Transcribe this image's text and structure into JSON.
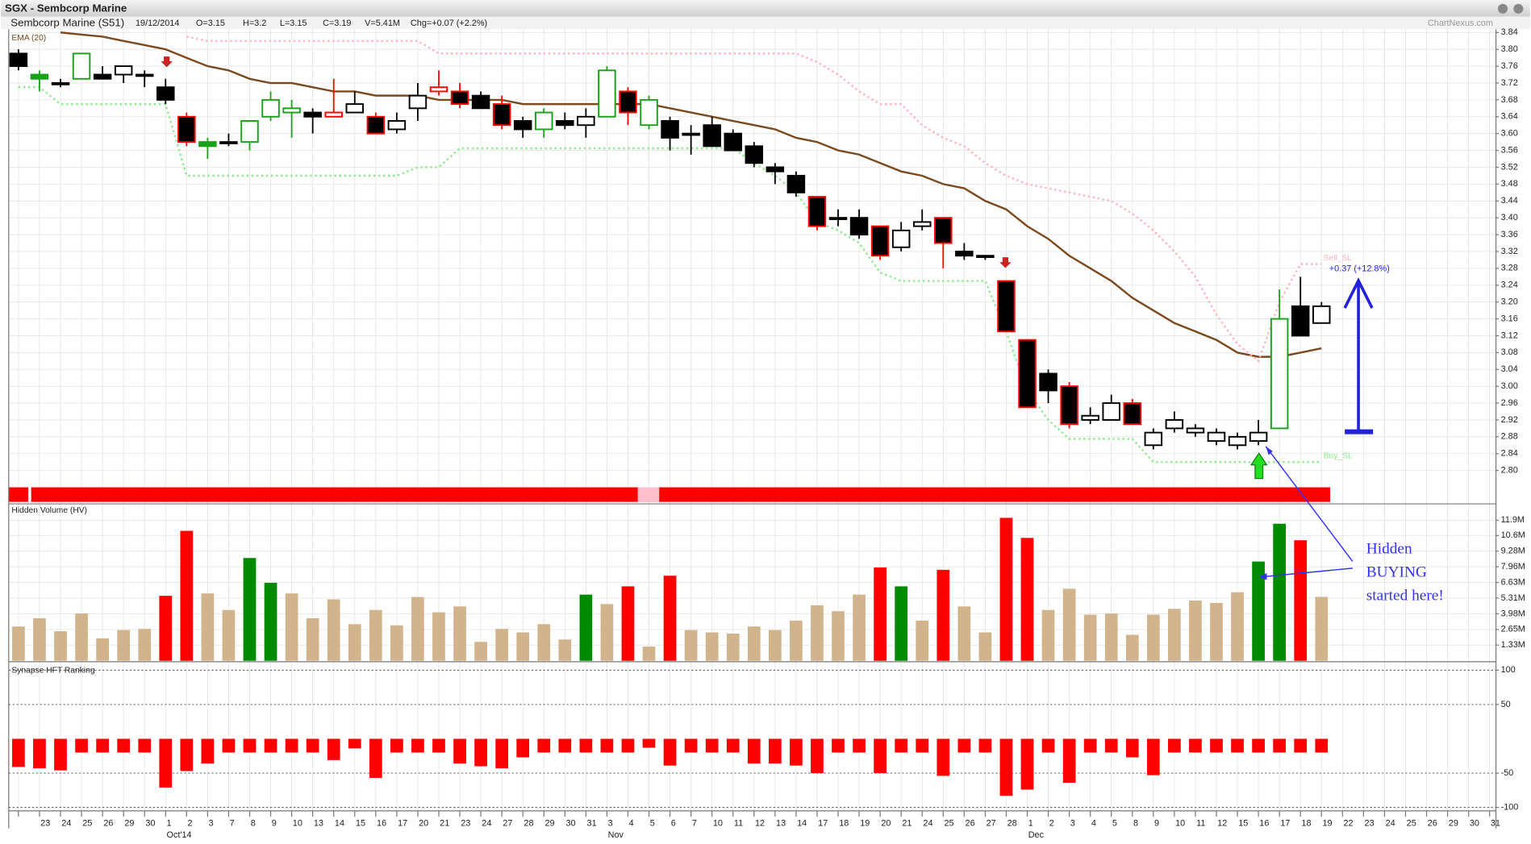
{
  "header": {
    "title": "SGX - Sembcorp Marine",
    "name": "Sembcorp Marine (S51)",
    "date": "19/12/2014",
    "open": "O=3.15",
    "high": "H=3.2",
    "low": "L=3.15",
    "close": "C=3.19",
    "volume": "V=5.41M",
    "change": "Chg=+0.07 (+2.2%)",
    "source": "ChartNexus.com"
  },
  "annotation": {
    "lines": [
      "Hidden",
      "BUYING",
      "started here!"
    ]
  },
  "chart_data": [
    {
      "type": "candlestick",
      "categories": [
        null,
        "23",
        "24",
        "25",
        "26",
        "29",
        "30",
        "1",
        "2",
        "3",
        "7",
        "8",
        "9",
        "10",
        "13",
        "14",
        "15",
        "16",
        "17",
        "20",
        "21",
        "23",
        "24",
        "27",
        "28",
        "29",
        "30",
        "31",
        "3",
        "4",
        "5",
        "6",
        "7",
        "10",
        "11",
        "12",
        "13",
        "14",
        "17",
        "18",
        "19",
        "20",
        "21",
        "24",
        "25",
        "26",
        "27",
        "28",
        "1",
        "2",
        "3",
        "4",
        "5",
        "8",
        "9",
        "10",
        "11",
        "12",
        "15",
        "16",
        "17",
        "18",
        "19",
        "22",
        "23",
        "24",
        "25",
        "26",
        "29",
        "30",
        "31"
      ],
      "months": [
        "Oct'14",
        "Nov",
        "Dec"
      ],
      "open": [
        3.79,
        3.74,
        3.72,
        3.73,
        3.74,
        3.74,
        3.74,
        3.71,
        3.64,
        3.58,
        3.58,
        3.58,
        3.64,
        3.65,
        3.65,
        3.64,
        3.65,
        3.64,
        3.61,
        3.66,
        3.7,
        3.7,
        3.69,
        3.67,
        3.63,
        3.61,
        3.63,
        3.62,
        3.64,
        3.7,
        3.62,
        3.63,
        3.6,
        3.62,
        3.6,
        3.57,
        3.52,
        3.5,
        3.45,
        3.4,
        3.4,
        3.38,
        3.33,
        3.38,
        3.4,
        3.32,
        3.31,
        3.25,
        3.11,
        3.03,
        3.0,
        2.92,
        2.92,
        2.96,
        2.86,
        2.9,
        2.89,
        2.87,
        2.86,
        2.87,
        2.9,
        3.19,
        3.15,
        null,
        null,
        null,
        null,
        null,
        null,
        null,
        null
      ],
      "high": [
        3.8,
        3.75,
        3.73,
        3.79,
        3.76,
        3.76,
        3.75,
        3.73,
        3.65,
        3.59,
        3.6,
        3.63,
        3.7,
        3.68,
        3.66,
        3.73,
        3.7,
        3.65,
        3.65,
        3.72,
        3.75,
        3.72,
        3.7,
        3.69,
        3.64,
        3.66,
        3.65,
        3.66,
        3.76,
        3.71,
        3.69,
        3.64,
        3.62,
        3.64,
        3.61,
        3.58,
        3.53,
        3.51,
        3.45,
        3.42,
        3.42,
        3.38,
        3.39,
        3.42,
        3.4,
        3.34,
        3.31,
        3.25,
        3.11,
        3.04,
        3.01,
        2.95,
        2.98,
        2.97,
        2.9,
        2.94,
        2.91,
        2.9,
        2.89,
        2.92,
        3.23,
        3.26,
        3.2,
        null,
        null,
        null,
        null,
        null,
        null,
        null,
        null
      ],
      "low": [
        3.75,
        3.7,
        3.71,
        3.73,
        3.73,
        3.72,
        3.71,
        3.67,
        3.57,
        3.54,
        3.57,
        3.56,
        3.63,
        3.59,
        3.6,
        3.64,
        3.65,
        3.6,
        3.6,
        3.63,
        3.69,
        3.66,
        3.66,
        3.61,
        3.59,
        3.59,
        3.61,
        3.59,
        3.64,
        3.62,
        3.61,
        3.56,
        3.55,
        3.57,
        3.56,
        3.52,
        3.48,
        3.45,
        3.37,
        3.38,
        3.35,
        3.3,
        3.32,
        3.37,
        3.28,
        3.3,
        3.3,
        3.13,
        2.95,
        2.96,
        2.9,
        2.91,
        2.92,
        2.91,
        2.85,
        2.89,
        2.88,
        2.86,
        2.85,
        2.86,
        2.9,
        3.12,
        3.15,
        null,
        null,
        null,
        null,
        null,
        null,
        null,
        null
      ],
      "close": [
        3.76,
        3.73,
        3.72,
        3.79,
        3.73,
        3.76,
        3.74,
        3.68,
        3.58,
        3.57,
        3.58,
        3.63,
        3.68,
        3.66,
        3.64,
        3.65,
        3.67,
        3.6,
        3.63,
        3.69,
        3.71,
        3.67,
        3.66,
        3.62,
        3.61,
        3.65,
        3.62,
        3.64,
        3.75,
        3.65,
        3.68,
        3.59,
        3.6,
        3.57,
        3.56,
        3.53,
        3.51,
        3.46,
        3.38,
        3.4,
        3.36,
        3.31,
        3.37,
        3.39,
        3.34,
        3.31,
        3.31,
        3.13,
        2.95,
        2.99,
        2.91,
        2.93,
        2.96,
        2.91,
        2.89,
        2.92,
        2.9,
        2.89,
        2.88,
        2.89,
        3.16,
        3.12,
        3.19,
        null,
        null,
        null,
        null,
        null,
        null,
        null,
        null
      ],
      "edge_colors": [
        "#000000",
        "#1aa01a",
        "#000000",
        "#1aa01a",
        "#000000",
        "#000000",
        "#000000",
        "#000000",
        "#ff0000",
        "#1aa01a",
        "#000000",
        "#1aa01a",
        "#1aa01a",
        "#1aa01a",
        "#000000",
        "#ff0000",
        "#000000",
        "#ff0000",
        "#000000",
        "#000000",
        "#ff0000",
        "#ff0000",
        "#000000",
        "#ff0000",
        "#000000",
        "#1aa01a",
        "#000000",
        "#000000",
        "#1aa01a",
        "#ff0000",
        "#1aa01a",
        "#000000",
        "#000000",
        "#000000",
        "#000000",
        "#000000",
        "#000000",
        "#000000",
        "#ff0000",
        "#000000",
        "#000000",
        "#ff0000",
        "#000000",
        "#000000",
        "#ff0000",
        "#000000",
        "#000000",
        "#ff0000",
        "#ff0000",
        "#000000",
        "#ff0000",
        "#000000",
        "#000000",
        "#ff0000",
        "#000000",
        "#000000",
        "#000000",
        "#000000",
        "#000000",
        "#000000",
        "#1aa01a",
        "#000000",
        "#000000",
        null,
        null,
        null,
        null,
        null,
        null,
        null,
        null
      ],
      "up_fill": "#ffffff",
      "down_fill": "#000000",
      "ylim": [
        2.73,
        3.85
      ],
      "yticks": [
        3.84,
        {
          "value": 3.8,
          "label": "3.80"
        },
        3.76,
        3.72,
        3.68,
        3.64,
        {
          "value": 3.6,
          "label": "3.60"
        },
        3.56,
        3.52,
        3.48,
        3.44,
        {
          "value": 3.4,
          "label": "3.40"
        },
        3.36,
        3.32,
        3.28,
        3.24,
        {
          "value": 3.2,
          "label": "3.20"
        },
        3.16,
        3.12,
        3.08,
        3.04,
        {
          "value": 3.0,
          "label": "3.00"
        },
        2.96,
        2.92,
        2.88,
        2.84,
        {
          "value": 2.8,
          "label": "2.80"
        }
      ],
      "grid": true,
      "series": [
        {
          "name": "EMA (20)",
          "color": "#7b4a1e",
          "values": [
            null,
            null,
            3.84,
            3.835,
            3.83,
            3.82,
            3.81,
            3.8,
            3.78,
            3.76,
            3.75,
            3.73,
            3.72,
            3.72,
            3.71,
            3.7,
            3.7,
            3.69,
            3.69,
            3.69,
            3.68,
            3.68,
            3.68,
            3.68,
            3.67,
            3.67,
            3.67,
            3.67,
            3.67,
            3.67,
            3.67,
            3.66,
            3.65,
            3.64,
            3.63,
            3.62,
            3.61,
            3.59,
            3.58,
            3.56,
            3.55,
            3.53,
            3.51,
            3.5,
            3.48,
            3.47,
            3.44,
            3.42,
            3.38,
            3.35,
            3.31,
            3.28,
            3.25,
            3.21,
            3.18,
            3.15,
            3.13,
            3.11,
            3.08,
            3.07,
            3.07,
            3.08,
            3.09,
            null,
            null,
            null,
            null,
            null,
            null,
            null,
            null
          ]
        },
        {
          "name": "Sell_SL",
          "color": "#ffb3bf",
          "values": [
            null,
            null,
            null,
            null,
            null,
            null,
            null,
            null,
            3.83,
            3.82,
            3.82,
            3.82,
            3.82,
            3.82,
            3.82,
            3.82,
            3.82,
            3.82,
            3.82,
            3.82,
            3.79,
            3.79,
            3.79,
            3.79,
            3.79,
            3.79,
            3.79,
            3.79,
            3.79,
            3.79,
            3.79,
            3.79,
            3.79,
            3.79,
            3.79,
            3.79,
            3.79,
            3.79,
            3.77,
            3.74,
            3.7,
            3.67,
            3.67,
            3.62,
            3.59,
            3.57,
            3.53,
            3.5,
            3.48,
            3.47,
            3.46,
            3.45,
            3.44,
            3.41,
            3.37,
            3.32,
            3.26,
            3.17,
            3.1,
            3.06,
            3.2,
            3.29,
            3.29,
            null,
            null,
            null,
            null,
            null,
            null,
            null,
            null
          ]
        },
        {
          "name": "Buy_SL",
          "color": "#8fe88f",
          "values": [
            3.71,
            3.71,
            3.67,
            3.67,
            3.67,
            3.67,
            3.67,
            3.67,
            3.5,
            3.5,
            3.5,
            3.5,
            3.5,
            3.5,
            3.5,
            3.5,
            3.5,
            3.5,
            3.5,
            3.52,
            3.52,
            3.565,
            3.565,
            3.565,
            3.565,
            3.565,
            3.565,
            3.565,
            3.565,
            3.565,
            3.565,
            3.565,
            3.565,
            3.565,
            3.565,
            3.53,
            3.5,
            3.46,
            3.39,
            3.37,
            3.34,
            3.27,
            3.25,
            3.25,
            3.25,
            3.25,
            3.25,
            3.13,
            2.99,
            2.92,
            2.875,
            2.875,
            2.875,
            2.875,
            2.82,
            2.82,
            2.82,
            2.82,
            2.82,
            2.82,
            2.82,
            2.82,
            2.82,
            null,
            null,
            null,
            null,
            null,
            null,
            null,
            null
          ]
        }
      ],
      "annotation": "+0.37 (+12.8%)"
    },
    {
      "type": "bar",
      "title": "Hidden Volume (HV)",
      "values": [
        2.9,
        3.6,
        2.5,
        4.0,
        1.9,
        2.6,
        2.7,
        5.5,
        11.0,
        5.7,
        4.3,
        8.7,
        6.6,
        5.7,
        3.6,
        5.2,
        3.1,
        4.3,
        3.0,
        5.4,
        4.1,
        4.6,
        1.6,
        2.7,
        2.4,
        3.1,
        1.8,
        5.6,
        4.8,
        6.3,
        1.2,
        7.2,
        2.6,
        2.4,
        2.3,
        2.9,
        2.6,
        3.4,
        4.7,
        4.2,
        5.6,
        7.9,
        6.3,
        3.4,
        7.7,
        4.6,
        2.4,
        12.1,
        10.4,
        4.3,
        6.1,
        3.9,
        4.0,
        2.2,
        3.9,
        4.4,
        5.1,
        4.9,
        5.8,
        8.4,
        11.6,
        10.2,
        5.41,
        null,
        null,
        null,
        null,
        null,
        null,
        null,
        null
      ],
      "colors": [
        "#d2b48c",
        "#d2b48c",
        "#d2b48c",
        "#d2b48c",
        "#d2b48c",
        "#d2b48c",
        "#d2b48c",
        "#ff0000",
        "#ff0000",
        "#d2b48c",
        "#d2b48c",
        "#008a00",
        "#008a00",
        "#d2b48c",
        "#d2b48c",
        "#d2b48c",
        "#d2b48c",
        "#d2b48c",
        "#d2b48c",
        "#d2b48c",
        "#d2b48c",
        "#d2b48c",
        "#d2b48c",
        "#d2b48c",
        "#d2b48c",
        "#d2b48c",
        "#d2b48c",
        "#008a00",
        "#d2b48c",
        "#ff0000",
        "#d2b48c",
        "#ff0000",
        "#d2b48c",
        "#d2b48c",
        "#d2b48c",
        "#d2b48c",
        "#d2b48c",
        "#d2b48c",
        "#d2b48c",
        "#d2b48c",
        "#d2b48c",
        "#ff0000",
        "#008a00",
        "#d2b48c",
        "#ff0000",
        "#d2b48c",
        "#d2b48c",
        "#ff0000",
        "#ff0000",
        "#d2b48c",
        "#d2b48c",
        "#d2b48c",
        "#d2b48c",
        "#d2b48c",
        "#d2b48c",
        "#d2b48c",
        "#d2b48c",
        "#d2b48c",
        "#d2b48c",
        "#008a00",
        "#008a00",
        "#ff0000",
        "#d2b48c",
        null,
        null,
        null,
        null,
        null,
        null,
        null,
        null
      ],
      "ylim": [
        0,
        13.2
      ],
      "yticks": [
        {
          "value": 1.33,
          "label": "1.33M"
        },
        {
          "value": 2.65,
          "label": "2.65M"
        },
        {
          "value": 3.98,
          "label": "3.98M"
        },
        {
          "value": 5.31,
          "label": "5.31M"
        },
        {
          "value": 6.63,
          "label": "6.63M"
        },
        {
          "value": 7.96,
          "label": "7.96M"
        },
        {
          "value": 9.28,
          "label": "9.28M"
        },
        {
          "value": 10.6,
          "label": "10.6M"
        },
        {
          "value": 11.9,
          "label": "11.9M"
        }
      ],
      "grid": true
    },
    {
      "type": "bar",
      "title": "Synapse HFT Ranking",
      "values": [
        -41,
        -43,
        -46,
        -20,
        -20,
        -20,
        -20,
        -71,
        -47,
        -36,
        -20,
        -20,
        -20,
        -20,
        -20,
        -31,
        -14,
        -57,
        -20,
        -20,
        -20,
        -36,
        -40,
        -43,
        -27,
        -20,
        -20,
        -20,
        -20,
        -20,
        -13,
        -39,
        -20,
        -20,
        -20,
        -36,
        -36,
        -39,
        -50,
        -20,
        -20,
        -50,
        -20,
        -20,
        -54,
        -20,
        -20,
        -83,
        -74,
        -20,
        -64,
        -20,
        -20,
        -27,
        -53,
        -20,
        -20,
        -20,
        -20,
        -20,
        -20,
        -20,
        -20,
        null,
        null,
        null,
        null,
        null,
        null,
        null,
        null
      ],
      "color": "#ff0000",
      "ylim": [
        -105,
        108
      ],
      "yticks": [
        100,
        50,
        -50,
        -100
      ],
      "grid": true
    }
  ]
}
